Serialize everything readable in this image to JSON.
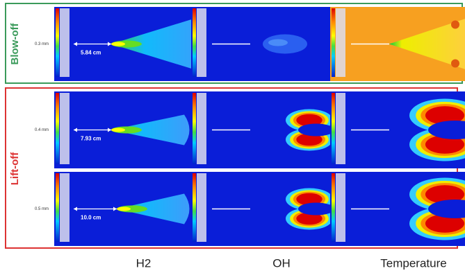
{
  "groups": [
    {
      "label": "Blow-off",
      "rows": [
        {
          "gap": "0.3 mm",
          "distance": "5.84 cm"
        }
      ]
    },
    {
      "label": "Lift-off",
      "rows": [
        {
          "gap": "0.4 mm",
          "distance": "7.93 cm"
        },
        {
          "gap": "0.5 mm",
          "distance": "10.0 cm"
        }
      ]
    }
  ],
  "columns": [
    "H2",
    "OH",
    "Temperature"
  ]
}
